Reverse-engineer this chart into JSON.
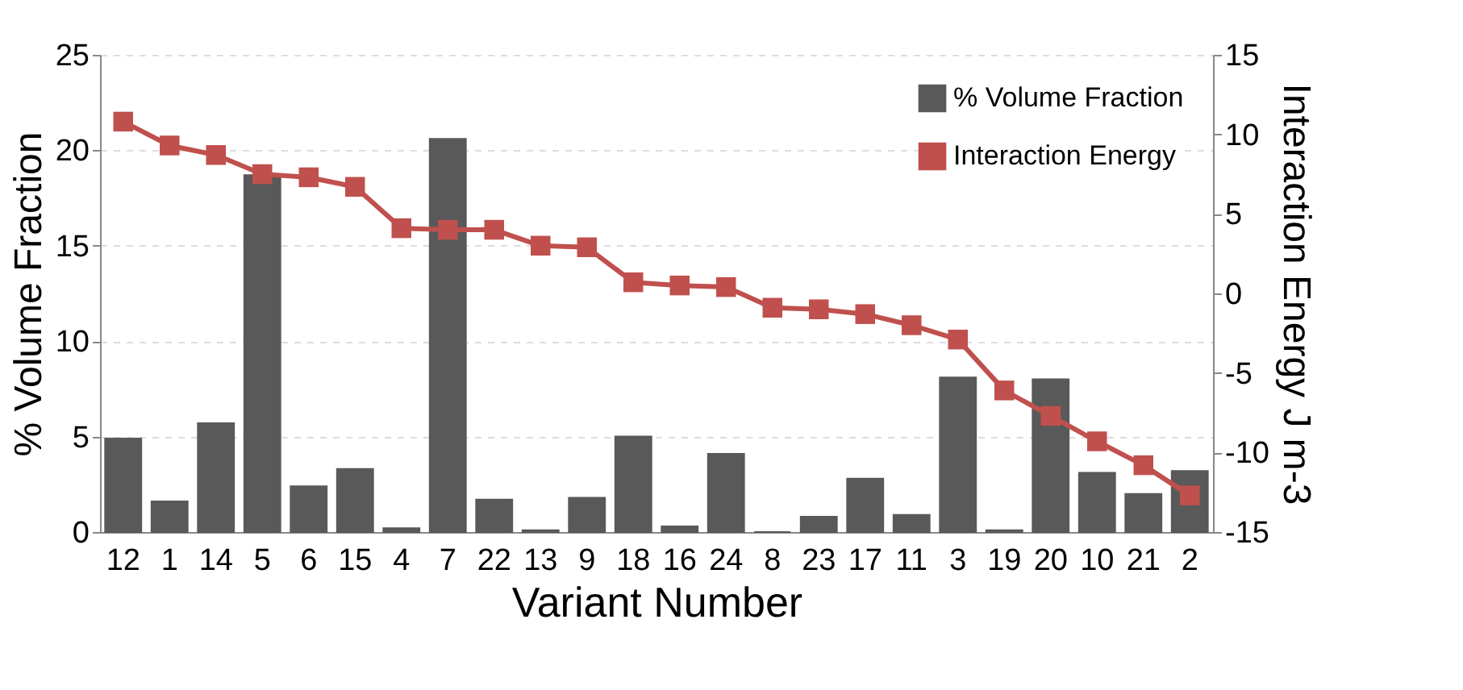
{
  "chart_data": {
    "type": "bar",
    "xlabel": "Variant Number",
    "ylabel": "% Volume Fraction",
    "y2label": "Interaction Energy J m-3",
    "categories": [
      "12",
      "1",
      "14",
      "5",
      "6",
      "15",
      "4",
      "7",
      "22",
      "13",
      "9",
      "18",
      "16",
      "24",
      "8",
      "23",
      "17",
      "11",
      "3",
      "19",
      "20",
      "10",
      "21",
      "2"
    ],
    "series": [
      {
        "name": "% Volume Fraction",
        "color": "#595959",
        "values": [
          4.9,
          1.6,
          5.7,
          18.7,
          2.4,
          3.3,
          0.2,
          20.6,
          1.7,
          0.1,
          1.8,
          5.0,
          0.3,
          4.1,
          0,
          0.8,
          2.8,
          0.9,
          8.1,
          0.1,
          8.0,
          3.1,
          2.0,
          3.2
        ]
      },
      {
        "name": "Interaction Energy",
        "type": "line",
        "axis": "y2",
        "color": "#c0504d",
        "marker": "square",
        "values": [
          10.8,
          9.3,
          8.7,
          7.5,
          7.3,
          6.7,
          4.1,
          4.0,
          4.0,
          3.0,
          2.9,
          0.7,
          0.5,
          0.4,
          -0.9,
          -1.0,
          -1.3,
          -2.0,
          -2.9,
          -6.1,
          -7.7,
          -9.3,
          -10.8,
          -12.7
        ]
      }
    ],
    "ylim": [
      0,
      25
    ],
    "yticks": [
      0,
      5,
      10,
      15,
      20,
      25
    ],
    "y2lim": [
      -15,
      15
    ],
    "y2ticks": [
      -15,
      -10,
      -5,
      0,
      5,
      10,
      15
    ],
    "grid": "y",
    "legend": "top right"
  }
}
